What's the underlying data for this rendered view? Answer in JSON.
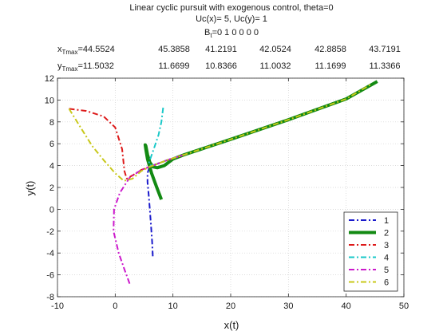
{
  "chart_data": {
    "type": "line",
    "title_lines": [
      "Linear cyclic pursuit with exogenous control, theta=0",
      "Uc(x)= 5, Uc(y)= 1"
    ],
    "bt_label": {
      "base": "B",
      "sub": "t",
      "rest": "=0  1  0  0  0  0"
    },
    "xtmax_label": {
      "base": "x",
      "sub": "Tmax",
      "rest": "=44.5524"
    },
    "ytmax_label": {
      "base": "y",
      "sub": "Tmax",
      "rest": "=11.5032"
    },
    "xtmax_values": [
      "45.3858",
      "41.2191",
      "42.0524",
      "42.8858",
      "43.7191"
    ],
    "ytmax_values": [
      "11.6699",
      "10.8366",
      "11.0032",
      "11.1699",
      "11.3366"
    ],
    "xlabel": "x(t)",
    "ylabel": "y(t)",
    "xlim": [
      -10,
      50
    ],
    "ylim": [
      -8,
      12
    ],
    "xticks": [
      "-10",
      "0",
      "10",
      "20",
      "30",
      "40",
      "50"
    ],
    "yticks": [
      "-8",
      "-6",
      "-4",
      "-2",
      "0",
      "2",
      "4",
      "6",
      "8",
      "10",
      "12"
    ],
    "grid": true,
    "legend_position": "bottom-right",
    "series": [
      {
        "name": "1",
        "color": "#1a1acc",
        "dash": "dashdot",
        "width": 2,
        "points": [
          [
            6.5,
            -4.3
          ],
          [
            6.4,
            -3
          ],
          [
            6.2,
            -1.5
          ],
          [
            6,
            0
          ],
          [
            5.8,
            1.3
          ],
          [
            5.6,
            2.5
          ],
          [
            5.6,
            3.3
          ],
          [
            5.9,
            3.8
          ],
          [
            7,
            4.1
          ],
          [
            9,
            4.5
          ],
          [
            12,
            5
          ]
        ]
      },
      {
        "name": "2",
        "color": "#138a13",
        "dash": "solid",
        "width": 4,
        "points": [
          [
            8,
            0.9
          ],
          [
            7.2,
            2
          ],
          [
            6.3,
            3.3
          ],
          [
            5.6,
            4.6
          ],
          [
            5.3,
            5.5
          ],
          [
            5.2,
            5.9
          ],
          [
            5.3,
            5.8
          ],
          [
            5.6,
            5
          ],
          [
            6,
            4.3
          ],
          [
            6.5,
            3.9
          ],
          [
            7.3,
            3.8
          ],
          [
            8.5,
            4
          ],
          [
            10,
            4.6
          ],
          [
            12,
            5
          ],
          [
            20,
            6.4
          ],
          [
            30,
            8.2
          ],
          [
            40,
            10.1
          ],
          [
            45.4,
            11.7
          ]
        ]
      },
      {
        "name": "3",
        "color": "#dd1a1a",
        "dash": "dashdot",
        "width": 2,
        "points": [
          [
            -8,
            9.2
          ],
          [
            -5,
            9
          ],
          [
            -2,
            8.5
          ],
          [
            0,
            7.5
          ],
          [
            1.2,
            5.5
          ],
          [
            1.6,
            3.5
          ],
          [
            2,
            2.8
          ],
          [
            3,
            3.1
          ],
          [
            4.5,
            3.6
          ],
          [
            5.5,
            3.8
          ],
          [
            7,
            4.1
          ],
          [
            9,
            4.5
          ],
          [
            12,
            5
          ]
        ]
      },
      {
        "name": "4",
        "color": "#1ac8c8",
        "dash": "dashdot",
        "width": 2,
        "points": [
          [
            8.3,
            9.3
          ],
          [
            8,
            8
          ],
          [
            7.5,
            6.8
          ],
          [
            6.8,
            5.7
          ],
          [
            6.2,
            4.8
          ],
          [
            5.8,
            4.2
          ],
          [
            6.2,
            4
          ],
          [
            7,
            4.1
          ],
          [
            9,
            4.5
          ],
          [
            12,
            5
          ]
        ]
      },
      {
        "name": "5",
        "color": "#cc1acc",
        "dash": "dashdot",
        "width": 2,
        "points": [
          [
            2.5,
            -6.8
          ],
          [
            1.6,
            -5.5
          ],
          [
            0.6,
            -4
          ],
          [
            -0.3,
            -2
          ],
          [
            -0.2,
            0
          ],
          [
            0.8,
            1.5
          ],
          [
            2.5,
            2.9
          ],
          [
            4.5,
            3.6
          ],
          [
            5.5,
            3.8
          ],
          [
            7,
            4.1
          ],
          [
            9,
            4.5
          ],
          [
            12,
            5
          ]
        ]
      },
      {
        "name": "6",
        "color": "#c8c81a",
        "dash": "dashdot",
        "width": 2,
        "points": [
          [
            -8,
            9.2
          ],
          [
            -6,
            7.5
          ],
          [
            -4,
            5.8
          ],
          [
            -2,
            4.5
          ],
          [
            0,
            3.3
          ],
          [
            1.5,
            2.6
          ],
          [
            3,
            2.8
          ],
          [
            4.5,
            3.5
          ],
          [
            6,
            3.9
          ],
          [
            7,
            4.1
          ],
          [
            9,
            4.5
          ],
          [
            12,
            5
          ],
          [
            20,
            6.4
          ],
          [
            30,
            8.2
          ],
          [
            40,
            10.1
          ],
          [
            44.5,
            11.5
          ]
        ]
      }
    ]
  }
}
